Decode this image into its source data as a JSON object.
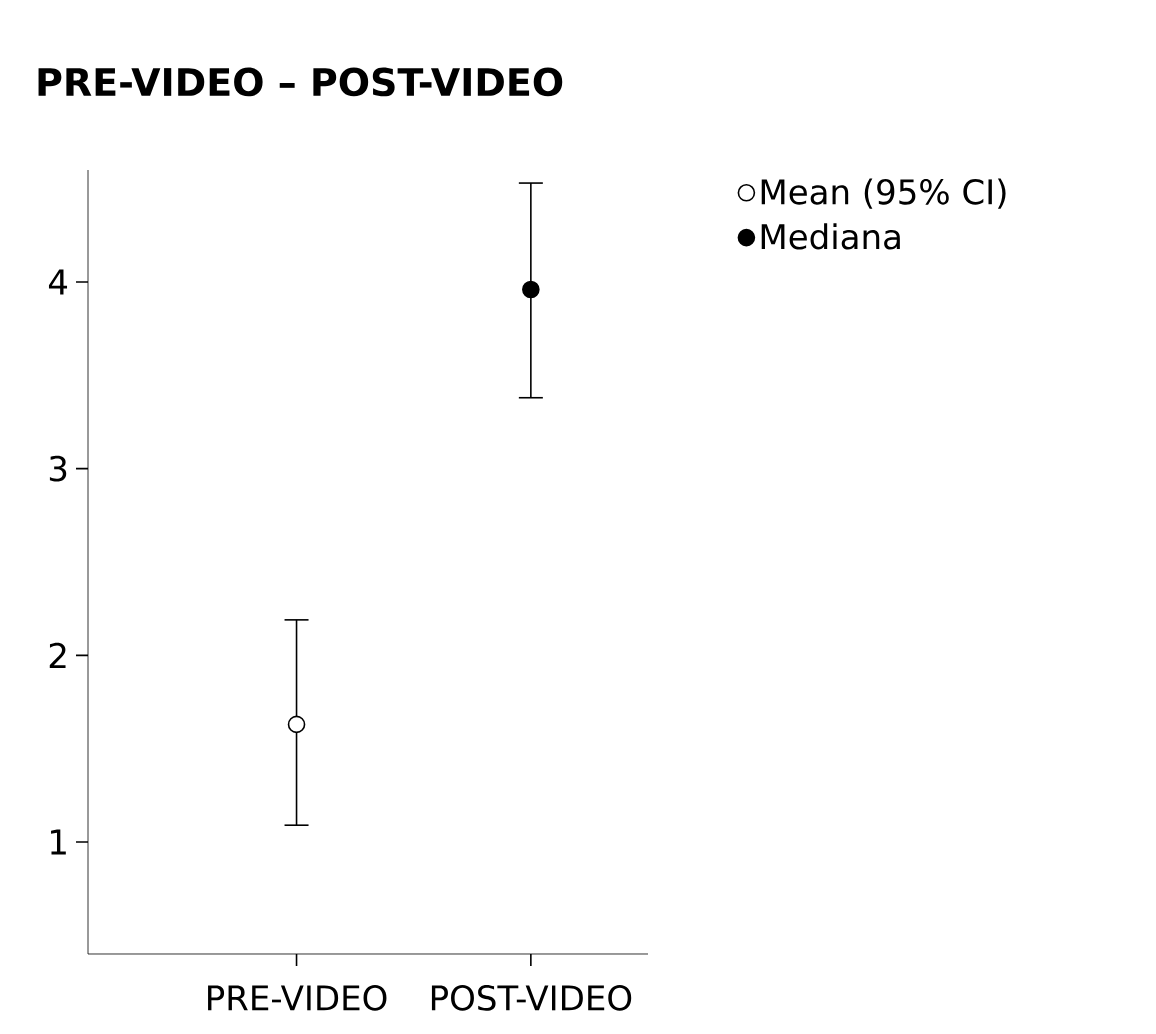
{
  "chart_data": {
    "type": "scatter",
    "title": "PRE-VIDEO – POST-VIDEO",
    "categories": [
      "PRE-VIDEO",
      "POST-VIDEO"
    ],
    "series": [
      {
        "name": "Mean (95% CI)",
        "color": "#ffffff",
        "values": [
          1.63,
          null
        ],
        "errors": [
          [
            1.09,
            2.19
          ],
          null
        ],
        "marker": "circle"
      },
      {
        "name": "Mediana",
        "color": "#000000",
        "values": [
          null,
          3.96
        ],
        "errors": [
          null,
          [
            3.38,
            4.53
          ]
        ],
        "marker": "circle"
      }
    ],
    "ylim": [
      0.4,
      4.6
    ],
    "yticks": [
      1,
      2,
      3,
      4
    ],
    "grid": false,
    "legend": "top right"
  }
}
